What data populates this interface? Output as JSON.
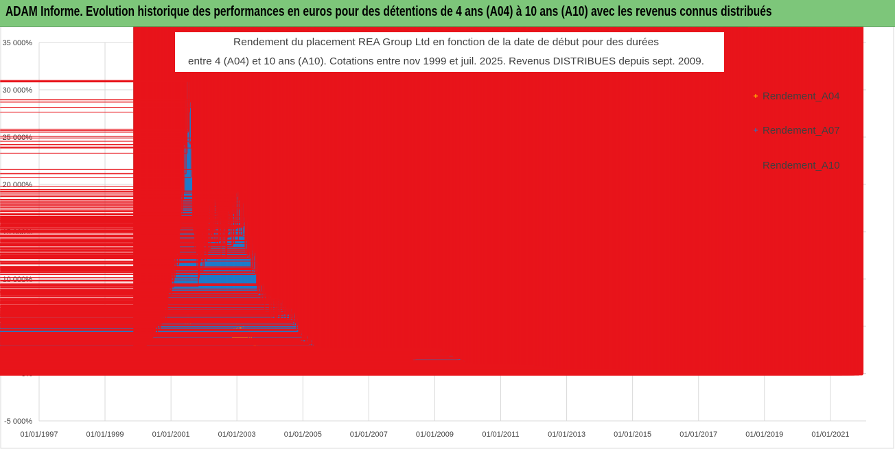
{
  "banner": {
    "title": "ADAM Informe. Evolution historique des performances en euros pour des détentions de 4 ans (A04) à 10 ans (A10) avec les revenus connus distribués"
  },
  "chart_data": {
    "type": "scatter",
    "title_line1": "Rendement du placement REA Group Ltd en fonction de la date de début pour des durées",
    "title_line2": "entre 4 (A04) et 10 ans (A10).  Cotations entre nov 1999 et juil. 2025. Revenus DISTRIBUES depuis sept. 2009.",
    "xlabel": "",
    "ylabel": "",
    "x_axis": "date",
    "xlim": [
      "1997-01-01",
      "2022-02-01"
    ],
    "ylim": [
      -5000,
      35000
    ],
    "y_unit": "%",
    "x_tick_labels": [
      "01/01/1997",
      "01/01/1999",
      "01/01/2001",
      "01/01/2003",
      "01/01/2005",
      "01/01/2007",
      "01/01/2009",
      "01/01/2011",
      "01/01/2013",
      "01/01/2015",
      "01/01/2017",
      "01/01/2019",
      "01/01/2021"
    ],
    "x_ticks": [
      "1997-01-01",
      "1999-01-01",
      "2001-01-01",
      "2003-01-01",
      "2005-01-01",
      "2007-01-01",
      "2009-01-01",
      "2011-01-01",
      "2013-01-01",
      "2015-01-01",
      "2017-01-01",
      "2019-01-01",
      "2021-01-01"
    ],
    "y_tick_labels": [
      "-5 000%",
      "0%",
      "5 000%",
      "10 000%",
      "15 000%",
      "20 000%",
      "25 000%",
      "30 000%",
      "35 000%"
    ],
    "y_ticks": [
      -5000,
      0,
      5000,
      10000,
      15000,
      20000,
      25000,
      30000,
      35000
    ],
    "grid": true,
    "legend_position": "right",
    "marker": "+",
    "series": [
      {
        "name": "Rendement_A04",
        "color": "#ffc000",
        "x": [
          "1999-11-15",
          "2000-03-01",
          "2000-07-01",
          "2000-11-01",
          "2001-01-01",
          "2001-04-01",
          "2001-07-15",
          "2001-09-01",
          "2001-11-01",
          "2002-02-01",
          "2002-05-01",
          "2002-08-01",
          "2002-11-01",
          "2003-01-01",
          "2003-04-01",
          "2003-07-01",
          "2003-10-01",
          "2004-01-01",
          "2004-04-01",
          "2004-07-01",
          "2004-10-01",
          "2005-01-01",
          "2005-06-01",
          "2006-01-01",
          "2006-07-01",
          "2007-01-01",
          "2007-07-01",
          "2008-01-01",
          "2008-07-01",
          "2009-01-01",
          "2009-07-01",
          "2010-01-01",
          "2010-07-01",
          "2011-01-01",
          "2011-07-01",
          "2012-01-01",
          "2012-07-01",
          "2013-01-01",
          "2013-07-01",
          "2014-01-01",
          "2014-07-01",
          "2015-01-01",
          "2015-07-01",
          "2016-01-01",
          "2016-07-01",
          "2017-01-01",
          "2017-07-01",
          "2018-01-01",
          "2018-07-01",
          "2019-01-01",
          "2019-07-01",
          "2020-01-01",
          "2020-07-01",
          "2021-01-01",
          "2021-07-01",
          "2022-01-01"
        ],
        "y": [
          -100,
          0,
          150,
          250,
          400,
          900,
          2900,
          2200,
          1400,
          2100,
          2600,
          2300,
          2700,
          3100,
          2700,
          2200,
          1000,
          800,
          700,
          650,
          500,
          300,
          150,
          200,
          250,
          300,
          300,
          250,
          300,
          950,
          700,
          500,
          350,
          300,
          250,
          300,
          150,
          200,
          150,
          50,
          80,
          50,
          30,
          40,
          30,
          20,
          30,
          20,
          10,
          5,
          15,
          25,
          10,
          20,
          5,
          0
        ]
      },
      {
        "name": "Rendement_A07",
        "color": "#1f7bc9",
        "x": [
          "1999-11-15",
          "2000-03-01",
          "2000-07-01",
          "2000-11-01",
          "2001-01-01",
          "2001-04-01",
          "2001-07-15",
          "2001-09-01",
          "2001-11-01",
          "2002-02-01",
          "2002-05-01",
          "2002-08-01",
          "2002-11-01",
          "2003-01-01",
          "2003-04-01",
          "2003-07-01",
          "2003-10-01",
          "2004-01-01",
          "2004-04-01",
          "2004-07-01",
          "2004-10-01",
          "2005-01-01",
          "2005-06-01",
          "2006-01-01",
          "2006-07-01",
          "2007-01-01",
          "2007-07-01",
          "2008-01-01",
          "2008-07-01",
          "2009-01-01",
          "2009-07-01",
          "2010-01-01",
          "2010-07-01",
          "2011-01-01",
          "2011-07-01",
          "2012-01-01",
          "2012-07-01",
          "2013-01-01",
          "2013-07-01",
          "2014-01-01",
          "2014-07-01",
          "2015-01-01",
          "2015-07-01",
          "2016-01-01",
          "2016-07-01",
          "2017-01-01",
          "2017-07-01",
          "2018-01-01",
          "2018-07-01"
        ],
        "y": [
          400,
          700,
          1800,
          2600,
          3300,
          3600,
          6000,
          4000,
          2500,
          3600,
          4300,
          3800,
          4500,
          5300,
          4800,
          3600,
          2300,
          2100,
          1900,
          1800,
          1600,
          1100,
          900,
          850,
          900,
          800,
          750,
          700,
          850,
          1900,
          1600,
          1000,
          600,
          600,
          500,
          550,
          350,
          300,
          200,
          200,
          150,
          150,
          200,
          150,
          100,
          100,
          100,
          80,
          50
        ]
      },
      {
        "name": "Rendement_A10",
        "color": "#e8141b",
        "x": [
          "1999-11-15",
          "2000-03-01",
          "2000-07-01",
          "2000-11-01",
          "2001-01-01",
          "2001-04-01",
          "2001-07-15",
          "2001-09-01",
          "2001-11-01",
          "2002-02-01",
          "2002-05-01",
          "2002-08-01",
          "2002-11-01",
          "2003-01-01",
          "2003-04-01",
          "2003-07-01",
          "2003-10-01",
          "2004-01-01",
          "2004-04-01",
          "2004-07-01",
          "2004-10-01",
          "2005-01-01",
          "2005-06-01",
          "2006-01-01",
          "2006-07-01",
          "2007-01-01",
          "2007-07-01",
          "2008-01-01",
          "2008-07-01",
          "2009-01-01",
          "2009-07-01",
          "2010-01-01",
          "2010-07-01",
          "2011-01-01",
          "2011-07-01",
          "2012-01-01",
          "2012-07-01",
          "2013-01-01",
          "2013-07-01",
          "2014-01-01",
          "2014-07-01",
          "2015-01-01",
          "2015-07-01",
          "2016-01-01",
          "2016-07-01",
          "2017-01-01",
          "2017-07-01",
          "2018-01-01",
          "2018-07-01",
          "2019-01-01",
          "2019-07-01",
          "2020-01-01",
          "2020-07-01",
          "2021-01-01",
          "2021-07-01",
          "2022-01-01"
        ],
        "y": [
          800,
          2500,
          4500,
          6500,
          9000,
          13000,
          30000,
          18000,
          11000,
          14500,
          16000,
          14000,
          15000,
          17000,
          15000,
          12000,
          8500,
          7000,
          6800,
          6500,
          6000,
          3800,
          2800,
          1800,
          1600,
          1300,
          1000,
          1100,
          1700,
          2600,
          2000,
          1000,
          700,
          800,
          900,
          750,
          500,
          350,
          300,
          250,
          300,
          250,
          0,
          0,
          -50,
          -50,
          -80,
          -100,
          -100,
          -50,
          -50,
          -80,
          -100,
          -100,
          -100,
          -100
        ]
      }
    ],
    "highlight_points_A10": [
      {
        "x": "2001-07-20",
        "y": 31000
      },
      {
        "x": "2001-07-25",
        "y": 29700
      },
      {
        "x": "2001-08-01",
        "y": 24400
      },
      {
        "x": "2002-08-10",
        "y": 19700
      },
      {
        "x": "2003-04-10",
        "y": 19200
      }
    ]
  }
}
